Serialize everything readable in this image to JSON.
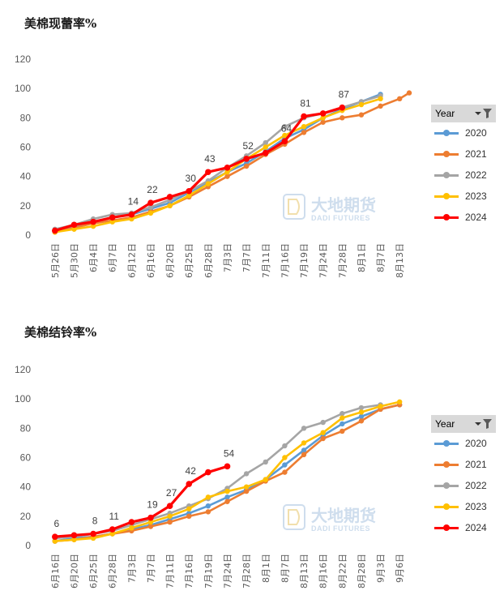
{
  "colors": {
    "2020": "#5b9bd5",
    "2021": "#ed7d31",
    "2022": "#a5a5a5",
    "2023": "#ffc000",
    "2024": "#ff0000",
    "grid_text": "#595959",
    "watermark": "#a7c3e0"
  },
  "watermark": {
    "cn": "大地期货",
    "en": "DADI FUTURES",
    "logo_icon": "dadi-logo-icon"
  },
  "legend": {
    "header": "Year",
    "filter_icon": "filter-icon",
    "dropdown_icon": "dropdown-arrow-icon"
  },
  "chart_data": [
    {
      "type": "line",
      "title": "美棉现蕾率%",
      "xlabel": "",
      "ylabel": "",
      "ylim": [
        0,
        120
      ],
      "yticks": [
        0,
        20,
        40,
        60,
        80,
        100,
        120
      ],
      "categories": [
        "5月26日",
        "5月30日",
        "6月4日",
        "6月7日",
        "6月12日",
        "6月16日",
        "6月20日",
        "6月25日",
        "6月28日",
        "7月3日",
        "7月7日",
        "7月11日",
        "7月16日",
        "7月19日",
        "7月24日",
        "7月28日",
        "8月1日",
        "8月7日",
        "8月13日"
      ],
      "series": [
        {
          "name": "2020",
          "x": [
            0,
            1,
            2,
            3,
            4,
            5,
            6,
            7,
            8,
            9,
            10,
            11,
            12,
            13,
            14,
            15,
            16,
            17
          ],
          "values": [
            3,
            6,
            9,
            12,
            14,
            18,
            22,
            29,
            36,
            43,
            49,
            57,
            66,
            72,
            80,
            86,
            91,
            96
          ]
        },
        {
          "name": "2021",
          "x": [
            0,
            1,
            2,
            3,
            4,
            5,
            6,
            7,
            8,
            9,
            10,
            11,
            12,
            13,
            14,
            15,
            16,
            17,
            18,
            18.5
          ],
          "values": [
            2,
            5,
            8,
            10,
            12,
            16,
            20,
            26,
            33,
            40,
            47,
            55,
            62,
            70,
            77,
            80,
            82,
            88,
            93,
            97
          ]
        },
        {
          "name": "2022",
          "x": [
            0,
            1,
            2,
            3,
            4,
            5,
            6,
            7,
            8,
            9,
            10,
            11,
            12,
            13,
            14,
            15,
            16,
            17
          ],
          "values": [
            4,
            7,
            11,
            14,
            15,
            19,
            24,
            30,
            37,
            46,
            54,
            63,
            74,
            80,
            83,
            87,
            91,
            95
          ]
        },
        {
          "name": "2023",
          "x": [
            0,
            1,
            2,
            3,
            4,
            5,
            6,
            7,
            8,
            9,
            10,
            11,
            12,
            13,
            14,
            15,
            16,
            17
          ],
          "values": [
            2,
            4,
            6,
            9,
            11,
            15,
            20,
            27,
            35,
            43,
            52,
            60,
            68,
            74,
            80,
            85,
            89,
            93
          ]
        },
        {
          "name": "2024",
          "x": [
            0,
            1,
            2,
            3,
            4,
            5,
            6,
            7,
            8,
            9,
            10,
            11,
            12,
            13,
            14,
            15
          ],
          "values": [
            3,
            7,
            9,
            12,
            14,
            22,
            26,
            30,
            43,
            46,
            52,
            56,
            64,
            81,
            83,
            87
          ]
        }
      ],
      "data_labels": [
        {
          "series": "2024",
          "index": 4,
          "text": "14"
        },
        {
          "series": "2024",
          "index": 5,
          "text": "22"
        },
        {
          "series": "2024",
          "index": 7,
          "text": "30"
        },
        {
          "series": "2024",
          "index": 8,
          "text": "43"
        },
        {
          "series": "2024",
          "index": 10,
          "text": "52"
        },
        {
          "series": "2024",
          "index": 12,
          "text": "64"
        },
        {
          "series": "2024",
          "index": 13,
          "text": "81"
        },
        {
          "series": "2024",
          "index": 15,
          "text": "87"
        }
      ]
    },
    {
      "type": "line",
      "title": "美棉结铃率%",
      "xlabel": "",
      "ylabel": "",
      "ylim": [
        0,
        120
      ],
      "yticks": [
        0,
        20,
        40,
        60,
        80,
        100,
        120
      ],
      "categories": [
        "6月16日",
        "6月20日",
        "6月25日",
        "6月28日",
        "7月3日",
        "7月7日",
        "7月11日",
        "7月16日",
        "7月19日",
        "7月24日",
        "7月28日",
        "8月1日",
        "8月7日",
        "8月13日",
        "8月16日",
        "8月22日",
        "8月28日",
        "9月3日",
        "9月6日"
      ],
      "series": [
        {
          "name": "2020",
          "x": [
            0,
            1,
            2,
            3,
            4,
            5,
            6,
            7,
            8,
            9,
            10,
            11,
            12,
            13,
            14,
            15,
            16,
            17,
            18
          ],
          "values": [
            3,
            5,
            6,
            8,
            11,
            14,
            18,
            22,
            27,
            33,
            38,
            45,
            55,
            65,
            75,
            83,
            88,
            93,
            96
          ]
        },
        {
          "name": "2021",
          "x": [
            0,
            1,
            2,
            3,
            4,
            5,
            6,
            7,
            8,
            9,
            10,
            11,
            12,
            13,
            14,
            15,
            16,
            17,
            18
          ],
          "values": [
            3,
            4,
            6,
            8,
            10,
            13,
            16,
            20,
            23,
            30,
            37,
            44,
            50,
            62,
            73,
            78,
            85,
            93,
            96
          ]
        },
        {
          "name": "2022",
          "x": [
            0,
            1,
            2,
            3,
            4,
            5,
            6,
            7,
            8,
            9,
            10,
            11,
            12,
            13,
            14,
            15,
            16,
            17
          ],
          "values": [
            5,
            6,
            8,
            10,
            14,
            18,
            22,
            27,
            32,
            39,
            49,
            57,
            68,
            80,
            84,
            90,
            94,
            96
          ]
        },
        {
          "name": "2023",
          "x": [
            0,
            1,
            2,
            3,
            4,
            5,
            6,
            7,
            8,
            9,
            10,
            11,
            12,
            13,
            14,
            15,
            16,
            17,
            18
          ],
          "values": [
            3,
            4,
            5,
            8,
            12,
            16,
            20,
            25,
            33,
            37,
            40,
            45,
            60,
            70,
            77,
            87,
            91,
            95,
            98
          ]
        },
        {
          "name": "2024",
          "x": [
            0,
            1,
            2,
            3,
            4,
            5,
            6,
            7,
            8,
            9
          ],
          "values": [
            6,
            7,
            8,
            11,
            16,
            19,
            27,
            42,
            50,
            54
          ]
        }
      ],
      "data_labels": [
        {
          "series": "2024",
          "index": 0,
          "text": "6"
        },
        {
          "series": "2024",
          "index": 2,
          "text": "8"
        },
        {
          "series": "2024",
          "index": 3,
          "text": "11"
        },
        {
          "series": "2024",
          "index": 5,
          "text": "19"
        },
        {
          "series": "2024",
          "index": 6,
          "text": "27"
        },
        {
          "series": "2024",
          "index": 7,
          "text": "42"
        },
        {
          "series": "2024",
          "index": 9,
          "text": "54"
        }
      ]
    }
  ]
}
